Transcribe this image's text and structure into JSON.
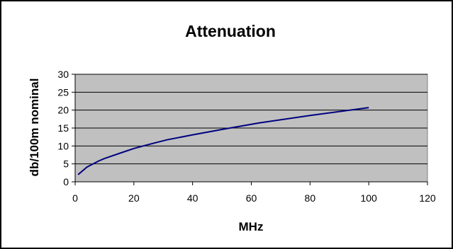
{
  "chart_data": {
    "type": "line",
    "title": "Attenuation",
    "xlabel": "MHz",
    "ylabel": "db/100m nominal",
    "xlim": [
      0,
      120
    ],
    "ylim": [
      0,
      30
    ],
    "x_ticks": [
      0,
      20,
      40,
      60,
      80,
      100,
      120
    ],
    "y_ticks": [
      0,
      5,
      10,
      15,
      20,
      25,
      30
    ],
    "grid": "horizontal",
    "legend": "none",
    "plot_background": "#c0c0c0",
    "series": [
      {
        "color": "#000080",
        "x": [
          1,
          4,
          8,
          10,
          16,
          20,
          25,
          31.25,
          40,
          50,
          62.5,
          80,
          100
        ],
        "y": [
          2.0,
          4.1,
          5.8,
          6.5,
          8.2,
          9.3,
          10.4,
          11.7,
          13.1,
          14.6,
          16.4,
          18.5,
          20.7
        ]
      }
    ]
  }
}
